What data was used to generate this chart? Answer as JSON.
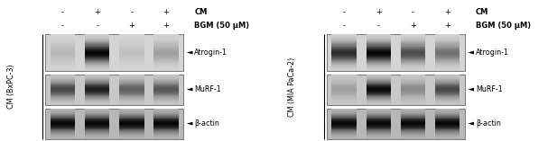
{
  "background_color": "#ffffff",
  "panel_left": {
    "y_label": "CM (BxPC-3)",
    "header_row1": [
      "-",
      "+",
      "-",
      "+",
      "CM"
    ],
    "header_row2": [
      "-",
      "-",
      "+",
      "+",
      "BGM (50 μM)"
    ],
    "bands": [
      {
        "name": "Atrogin-1",
        "lane_intensities": [
          0.12,
          0.88,
          0.08,
          0.22
        ],
        "band_color": "#444444",
        "bg_color": "#d4d4d4"
      },
      {
        "name": "MuRF-1",
        "lane_intensities": [
          0.58,
          0.78,
          0.48,
          0.52
        ],
        "band_color": "#333333",
        "bg_color": "#c8c8c8"
      },
      {
        "name": "β-actin",
        "lane_intensities": [
          0.88,
          0.88,
          0.88,
          0.88
        ],
        "band_color": "#111111",
        "bg_color": "#b8b8b8"
      }
    ]
  },
  "panel_right": {
    "y_label": "CM (MIA PaCa-2)",
    "header_row1": [
      "-",
      "+",
      "-",
      "+",
      "CM"
    ],
    "header_row2": [
      "-",
      "-",
      "+",
      "+",
      "BGM (50 μM)"
    ],
    "bands": [
      {
        "name": "Atrogin-1",
        "lane_intensities": [
          0.72,
          0.88,
          0.58,
          0.42
        ],
        "band_color": "#444444",
        "bg_color": "#d4d4d4"
      },
      {
        "name": "MuRF-1",
        "lane_intensities": [
          0.18,
          0.88,
          0.28,
          0.58
        ],
        "band_color": "#333333",
        "bg_color": "#c8c8c8"
      },
      {
        "name": "β-actin",
        "lane_intensities": [
          0.88,
          0.88,
          0.88,
          0.88
        ],
        "band_color": "#111111",
        "bg_color": "#b8b8b8"
      }
    ]
  },
  "label_fontsize": 5.8,
  "header_fontsize": 6.0,
  "ylabel_fontsize": 5.8
}
